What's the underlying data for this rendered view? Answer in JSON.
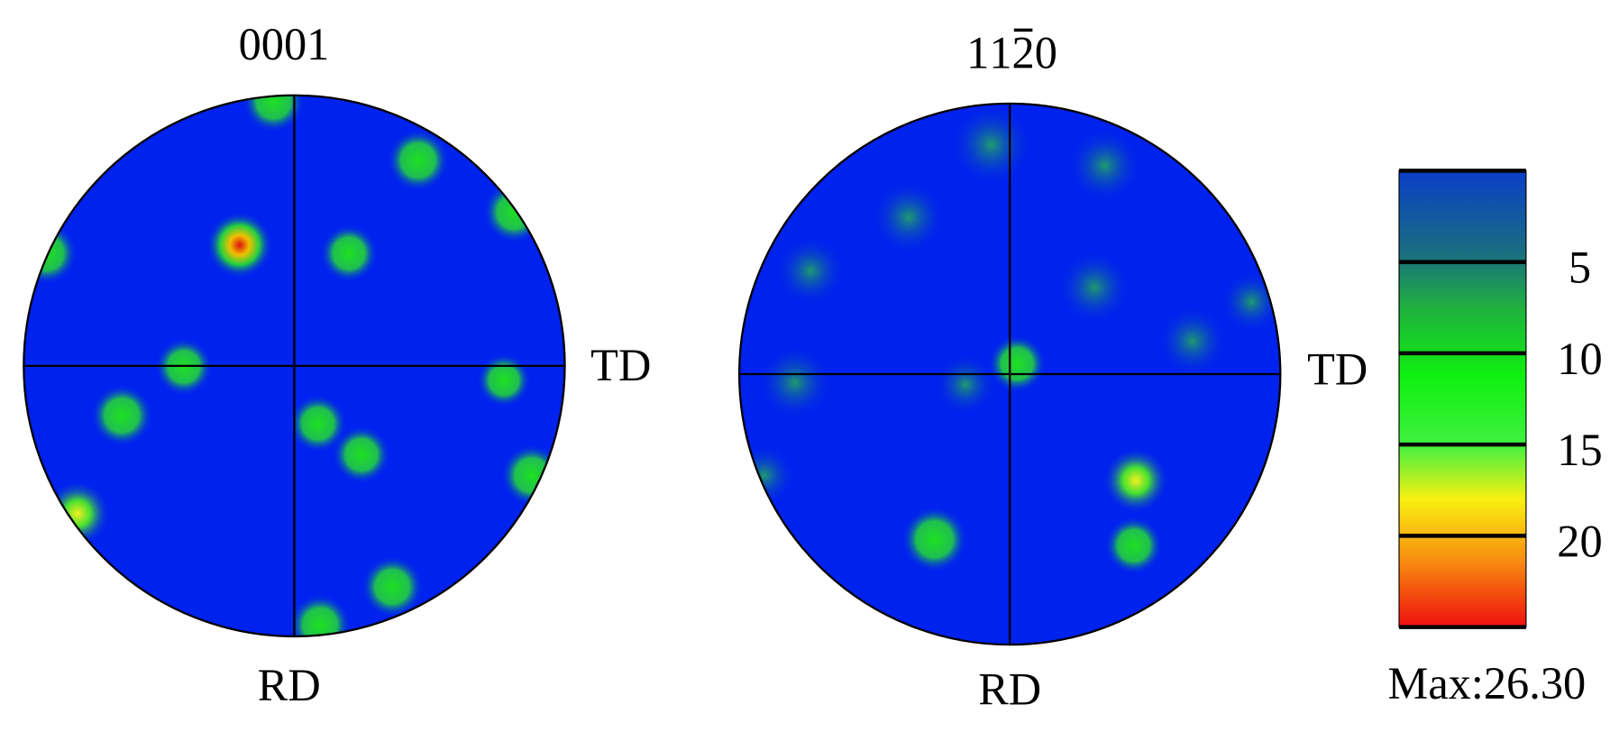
{
  "chart_data": {
    "type": "pole_figure",
    "figures": [
      {
        "title": "0001",
        "x_label": "TD",
        "y_label": "RD"
      },
      {
        "title": "1120",
        "overline_index": 2,
        "x_label": "TD",
        "y_label": "RD"
      }
    ],
    "colorbar": {
      "clim": [
        0,
        25
      ],
      "ticks": [
        5,
        10,
        15,
        20
      ],
      "max_label": "Max:26.30"
    }
  }
}
